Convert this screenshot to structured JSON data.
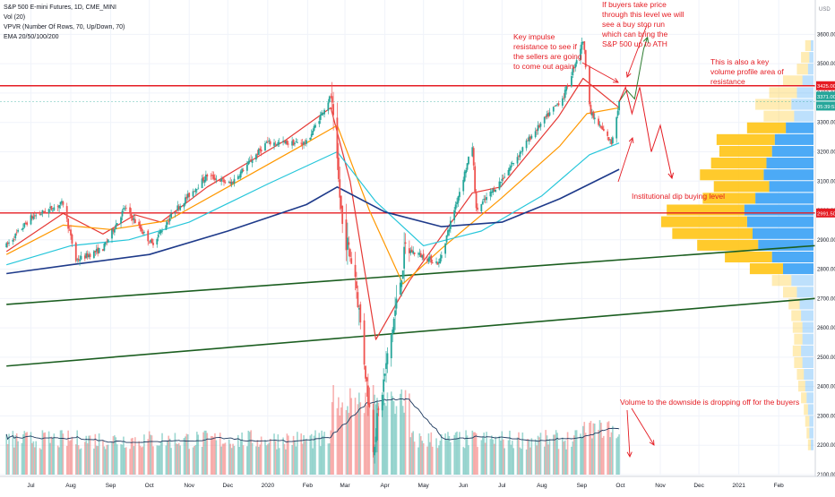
{
  "legend": {
    "title": "S&P 500 E-mini Futures, 1D, CME_MINI",
    "vol": "Vol (20)",
    "vpvr": "VPVR (Number Of Rows, 70, Up/Down, 70)",
    "ema": "EMA 20/50/100/200"
  },
  "annotations": {
    "buyers": "If buyers take price through this level we will see a buy stop run which can bring the S&P 500 up to ATH",
    "impulse": "Key impulse resistance to see if the sellers are going to come out again",
    "volume_profile": "This is also a key volume profile area of resistance",
    "dip": "Institutional dip buying level",
    "volume": "Volume to the downside is dropping off for the buyers"
  },
  "colors": {
    "up": "#26a69a",
    "down": "#ef5350",
    "ema20": "#e53935",
    "ema50": "#ff9800",
    "ema100": "#26c6da",
    "ema200": "#1e3a8a",
    "trend": "#1b5e20",
    "level": "#e51c23",
    "annotation": "#e51c23",
    "vpvr_up": "#42a5f5",
    "vpvr_down": "#ffc107"
  },
  "chart_data": {
    "type": "candlestick",
    "instrument": "S&P 500 E-mini Futures",
    "timeframe": "1D",
    "y_axis": {
      "unit": "USD",
      "range": [
        2100,
        3700
      ],
      "ticks": [
        "3600.00",
        "3500.00",
        "3400.00",
        "3300.00",
        "3200.00",
        "3100.00",
        "3000.00",
        "2900.00",
        "2800.00",
        "2700.00",
        "2600.00",
        "2500.00",
        "2400.00",
        "2300.00",
        "2200.00",
        "2100.00"
      ]
    },
    "x_axis": {
      "labels": [
        "Jul",
        "Aug",
        "Sep",
        "Oct",
        "Nov",
        "Dec",
        "2020",
        "Feb",
        "Mar",
        "Apr",
        "May",
        "Jun",
        "Jul",
        "Aug",
        "Sep",
        "Oct",
        "Nov",
        "Dec",
        "2021",
        "Feb"
      ]
    },
    "price_labels": [
      {
        "value": "3425.00",
        "kind": "level"
      },
      {
        "value": "3371.00",
        "kind": "last"
      },
      {
        "value": "05:39:53",
        "kind": "countdown"
      },
      {
        "value": "2991.50",
        "kind": "level"
      }
    ],
    "horizontal_levels": [
      3425,
      2991.5
    ],
    "price_path": [
      [
        "2019-06-12",
        2880
      ],
      [
        "2019-07-01",
        2975
      ],
      [
        "2019-07-26",
        3025
      ],
      [
        "2019-08-05",
        2830
      ],
      [
        "2019-08-26",
        2870
      ],
      [
        "2019-09-12",
        3010
      ],
      [
        "2019-10-03",
        2885
      ],
      [
        "2019-10-21",
        3000
      ],
      [
        "2019-11-15",
        3120
      ],
      [
        "2019-12-03",
        3090
      ],
      [
        "2019-12-31",
        3230
      ],
      [
        "2020-01-31",
        3230
      ],
      [
        "2020-02-19",
        3390
      ],
      [
        "2020-02-28",
        2950
      ],
      [
        "2020-03-09",
        2780
      ],
      [
        "2020-03-23",
        2200
      ],
      [
        "2020-04-17",
        2870
      ],
      [
        "2020-05-13",
        2820
      ],
      [
        "2020-06-08",
        3220
      ],
      [
        "2020-06-11",
        3000
      ],
      [
        "2020-06-30",
        3100
      ],
      [
        "2020-07-23",
        3250
      ],
      [
        "2020-08-18",
        3390
      ],
      [
        "2020-09-02",
        3580
      ],
      [
        "2020-09-08",
        3330
      ],
      [
        "2020-09-24",
        3230
      ],
      [
        "2020-09-30",
        3371
      ]
    ],
    "ema_paths": {
      "EMA 20": [
        [
          "2019-06-12",
          2860
        ],
        [
          "2019-07-26",
          2990
        ],
        [
          "2019-08-26",
          2920
        ],
        [
          "2019-09-20",
          2985
        ],
        [
          "2019-10-10",
          2960
        ],
        [
          "2019-11-15",
          3080
        ],
        [
          "2020-01-15",
          3240
        ],
        [
          "2020-02-19",
          3350
        ],
        [
          "2020-03-05",
          3100
        ],
        [
          "2020-03-25",
          2560
        ],
        [
          "2020-04-20",
          2760
        ],
        [
          "2020-06-08",
          3060
        ],
        [
          "2020-06-30",
          3080
        ],
        [
          "2020-08-14",
          3320
        ],
        [
          "2020-09-02",
          3450
        ],
        [
          "2020-09-30",
          3350
        ]
      ],
      "EMA 50": [
        [
          "2019-06-12",
          2850
        ],
        [
          "2019-07-26",
          2950
        ],
        [
          "2019-09-01",
          2935
        ],
        [
          "2019-10-15",
          2965
        ],
        [
          "2019-12-01",
          3080
        ],
        [
          "2020-01-31",
          3230
        ],
        [
          "2020-02-24",
          3290
        ],
        [
          "2020-03-20",
          3000
        ],
        [
          "2020-04-15",
          2750
        ],
        [
          "2020-05-15",
          2870
        ],
        [
          "2020-06-30",
          3040
        ],
        [
          "2020-08-15",
          3220
        ],
        [
          "2020-09-05",
          3330
        ],
        [
          "2020-09-30",
          3350
        ]
      ],
      "EMA 100": [
        [
          "2019-06-12",
          2815
        ],
        [
          "2019-08-01",
          2880
        ],
        [
          "2019-09-15",
          2900
        ],
        [
          "2019-11-01",
          2960
        ],
        [
          "2020-01-01",
          3090
        ],
        [
          "2020-02-24",
          3200
        ],
        [
          "2020-03-25",
          3030
        ],
        [
          "2020-05-01",
          2880
        ],
        [
          "2020-06-15",
          2930
        ],
        [
          "2020-08-01",
          3050
        ],
        [
          "2020-09-07",
          3190
        ],
        [
          "2020-09-30",
          3230
        ]
      ],
      "EMA 200": [
        [
          "2019-06-12",
          2785
        ],
        [
          "2019-08-01",
          2815
        ],
        [
          "2019-10-01",
          2850
        ],
        [
          "2019-12-01",
          2930
        ],
        [
          "2020-01-31",
          3020
        ],
        [
          "2020-02-24",
          3080
        ],
        [
          "2020-04-01",
          2995
        ],
        [
          "2020-05-15",
          2945
        ],
        [
          "2020-07-01",
          2960
        ],
        [
          "2020-08-15",
          3040
        ],
        [
          "2020-09-30",
          3140
        ]
      ]
    },
    "trendlines": [
      {
        "from": [
          "2019-06-12",
          2680
        ],
        "to": [
          "2021-03-01",
          2880
        ]
      },
      {
        "from": [
          "2019-06-12",
          2470
        ],
        "to": [
          "2021-03-01",
          2700
        ]
      }
    ],
    "projection_paths": [
      [
        [
          "2020-09-30",
          3371
        ],
        [
          "2020-10-06",
          3410
        ],
        [
          "2020-10-12",
          3380
        ],
        [
          "2020-10-19",
          3550
        ],
        [
          "2020-10-22",
          3590
        ]
      ],
      [
        [
          "2020-09-30",
          3371
        ],
        [
          "2020-10-05",
          3420
        ],
        [
          "2020-10-10",
          3330
        ],
        [
          "2020-10-16",
          3420
        ],
        [
          "2020-10-25",
          3200
        ],
        [
          "2020-11-01",
          3290
        ],
        [
          "2020-11-10",
          3110
        ]
      ]
    ],
    "volume": {
      "ylim": [
        0,
        100
      ],
      "ma_period": 20
    },
    "volume_profile": {
      "rows": [
        {
          "price": 3560,
          "up": 2,
          "down": 4
        },
        {
          "price": 3520,
          "up": 3,
          "down": 6
        },
        {
          "price": 3480,
          "up": 4,
          "down": 8
        },
        {
          "price": 3440,
          "up": 8,
          "down": 14
        },
        {
          "price": 3400,
          "up": 12,
          "down": 20
        },
        {
          "price": 3360,
          "up": 16,
          "down": 26
        },
        {
          "price": 3320,
          "up": 14,
          "down": 22
        },
        {
          "price": 3280,
          "up": 20,
          "down": 28
        },
        {
          "price": 3240,
          "up": 28,
          "down": 42
        },
        {
          "price": 3200,
          "up": 30,
          "down": 38
        },
        {
          "price": 3160,
          "up": 34,
          "down": 40
        },
        {
          "price": 3120,
          "up": 36,
          "down": 46
        },
        {
          "price": 3080,
          "up": 32,
          "down": 40
        },
        {
          "price": 3040,
          "up": 42,
          "down": 38
        },
        {
          "price": 3000,
          "up": 50,
          "down": 56
        },
        {
          "price": 2960,
          "up": 48,
          "down": 62
        },
        {
          "price": 2920,
          "up": 44,
          "down": 58
        },
        {
          "price": 2880,
          "up": 40,
          "down": 44
        },
        {
          "price": 2840,
          "up": 30,
          "down": 34
        },
        {
          "price": 2800,
          "up": 22,
          "down": 24
        },
        {
          "price": 2760,
          "up": 16,
          "down": 14
        },
        {
          "price": 2720,
          "up": 12,
          "down": 10
        },
        {
          "price": 2680,
          "up": 10,
          "down": 8
        },
        {
          "price": 2640,
          "up": 9,
          "down": 7
        },
        {
          "price": 2600,
          "up": 8,
          "down": 7
        },
        {
          "price": 2560,
          "up": 8,
          "down": 6
        },
        {
          "price": 2520,
          "up": 9,
          "down": 6
        },
        {
          "price": 2480,
          "up": 8,
          "down": 6
        },
        {
          "price": 2440,
          "up": 7,
          "down": 5
        },
        {
          "price": 2400,
          "up": 6,
          "down": 5
        },
        {
          "price": 2360,
          "up": 5,
          "down": 4
        },
        {
          "price": 2320,
          "up": 4,
          "down": 3
        },
        {
          "price": 2280,
          "up": 3,
          "down": 3
        },
        {
          "price": 2240,
          "up": 3,
          "down": 2
        },
        {
          "price": 2200,
          "up": 2,
          "down": 2
        }
      ]
    }
  }
}
